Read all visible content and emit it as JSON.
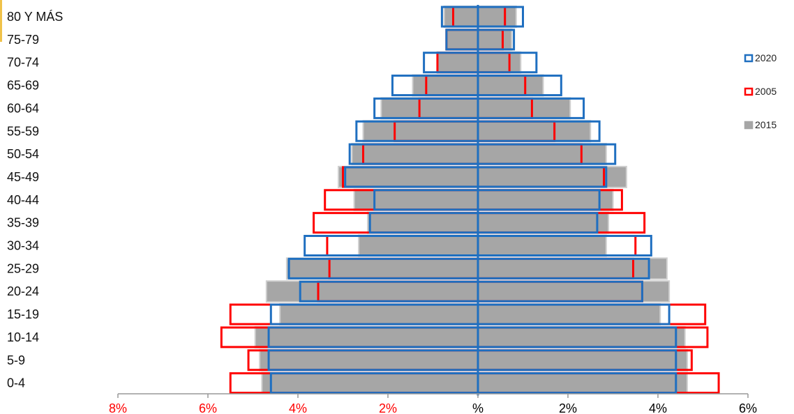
{
  "chart_data": {
    "type": "bar",
    "orientation": "horizontal-population-pyramid",
    "categories": [
      "80 Y MÁS",
      "75-79",
      "70-74",
      "65-69",
      "60-64",
      "55-59",
      "50-54",
      "45-49",
      "40-44",
      "35-39",
      "30-34",
      "25-29",
      "20-24",
      "15-19",
      "10-14",
      "5-9",
      "0-4"
    ],
    "x_tick_labels": [
      "8%",
      "6%",
      "4%",
      "2%",
      "%",
      "2%",
      "4%",
      "6%"
    ],
    "xlim": [
      -8,
      6
    ],
    "legend_position": "right",
    "series": [
      {
        "name": "2020",
        "color": "#1f6fc0",
        "style": "outline",
        "left": [
          0.8,
          0.7,
          1.2,
          1.9,
          2.3,
          2.7,
          2.85,
          2.95,
          2.3,
          2.4,
          3.85,
          4.2,
          3.95,
          4.6,
          4.65,
          4.65,
          4.6
        ],
        "right": [
          1.0,
          0.8,
          1.3,
          1.85,
          2.35,
          2.7,
          3.05,
          2.85,
          2.7,
          2.65,
          3.85,
          3.8,
          3.65,
          4.25,
          4.4,
          4.4,
          4.4
        ]
      },
      {
        "name": "2005",
        "color": "#ff0000",
        "style": "outline",
        "left": [
          0.55,
          0.7,
          0.9,
          1.15,
          1.3,
          1.85,
          2.55,
          3.0,
          3.4,
          3.65,
          3.35,
          3.3,
          3.55,
          5.5,
          5.7,
          5.1,
          5.5
        ],
        "right": [
          0.6,
          0.55,
          0.7,
          1.05,
          1.2,
          1.7,
          2.3,
          2.8,
          3.2,
          3.7,
          3.5,
          3.45,
          3.65,
          5.05,
          5.1,
          4.75,
          5.35
        ]
      },
      {
        "name": "2015",
        "color": "#a6a6a6",
        "style": "fill",
        "left": [
          0.75,
          0.7,
          0.9,
          1.45,
          2.15,
          2.55,
          2.8,
          3.1,
          2.75,
          2.45,
          2.65,
          4.25,
          4.7,
          4.4,
          4.95,
          4.85,
          4.8
        ],
        "right": [
          0.85,
          0.75,
          0.95,
          1.45,
          2.05,
          2.5,
          2.85,
          3.3,
          3.0,
          2.9,
          2.85,
          4.2,
          4.25,
          4.05,
          4.6,
          4.65,
          4.65
        ]
      }
    ],
    "tick_label_colors": {
      "left": "#ff0000",
      "right": "#000000"
    }
  }
}
